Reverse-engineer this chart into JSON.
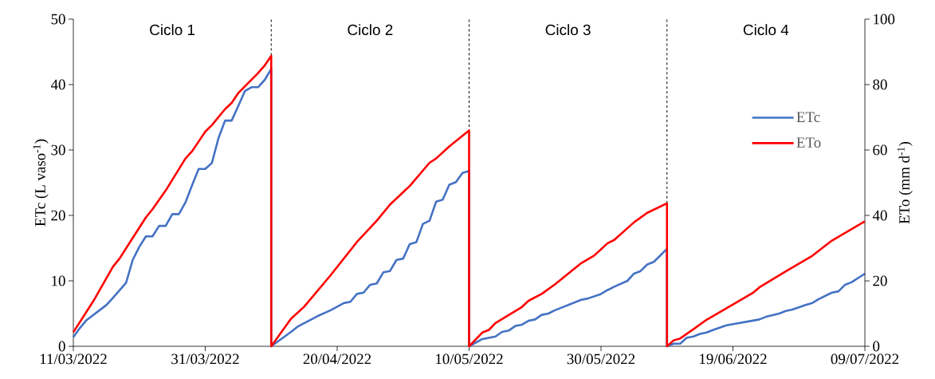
{
  "chart_data": {
    "type": "line",
    "xlim": [
      "2022-03-11",
      "2022-07-09"
    ],
    "xticks": [
      {
        "value": "2022-03-11",
        "label": "11/03/2022"
      },
      {
        "value": "2022-03-31",
        "label": "31/03/2022"
      },
      {
        "value": "2022-04-20",
        "label": "20/04/2022"
      },
      {
        "value": "2022-05-10",
        "label": "10/05/2022"
      },
      {
        "value": "2022-05-30",
        "label": "30/05/2022"
      },
      {
        "value": "2022-06-19",
        "label": "19/06/2022"
      },
      {
        "value": "2022-07-09",
        "label": "09/07/2022"
      }
    ],
    "ylim": [
      0,
      50
    ],
    "yticks": [
      0,
      10,
      20,
      30,
      40,
      50
    ],
    "y2lim": [
      0,
      100
    ],
    "y2ticks": [
      0,
      20,
      40,
      60,
      80,
      100
    ],
    "ylabel": "ETc (L vaso$^{-1}$)",
    "y2label": "ETo (mm d$^{-1}$)",
    "legend": "right",
    "series": [
      {
        "name": "ETc",
        "color": "#4472c4",
        "axis": "y",
        "x": [
          "2022-03-11",
          "2022-03-12",
          "2022-03-13",
          "2022-03-16",
          "2022-03-17",
          "2022-03-19",
          "2022-03-20",
          "2022-03-21",
          "2022-03-22",
          "2022-03-23",
          "2022-03-24",
          "2022-03-25",
          "2022-03-26",
          "2022-03-27",
          "2022-03-28",
          "2022-03-29",
          "2022-03-30",
          "2022-03-31",
          "2022-04-01",
          "2022-04-02",
          "2022-04-03",
          "2022-04-04",
          "2022-04-05",
          "2022-04-06",
          "2022-04-07",
          "2022-04-08",
          "2022-04-09",
          "2022-04-10",
          "2022-04-10",
          "2022-04-13",
          "2022-04-14",
          "2022-04-17",
          "2022-04-19",
          "2022-04-21",
          "2022-04-22",
          "2022-04-23",
          "2022-04-24",
          "2022-04-25",
          "2022-04-26",
          "2022-04-27",
          "2022-04-28",
          "2022-04-29",
          "2022-04-30",
          "2022-05-01",
          "2022-05-02",
          "2022-05-03",
          "2022-05-04",
          "2022-05-05",
          "2022-05-06",
          "2022-05-07",
          "2022-05-08",
          "2022-05-09",
          "2022-05-10",
          "2022-05-10",
          "2022-05-12",
          "2022-05-14",
          "2022-05-15",
          "2022-05-16",
          "2022-05-17",
          "2022-05-18",
          "2022-05-19",
          "2022-05-20",
          "2022-05-21",
          "2022-05-22",
          "2022-05-23",
          "2022-05-27",
          "2022-05-28",
          "2022-05-30",
          "2022-05-31",
          "2022-06-01",
          "2022-06-03",
          "2022-06-04",
          "2022-06-05",
          "2022-06-06",
          "2022-06-07",
          "2022-06-09",
          "2022-06-09",
          "2022-06-10",
          "2022-06-11",
          "2022-06-12",
          "2022-06-13",
          "2022-06-14",
          "2022-06-15",
          "2022-06-16",
          "2022-06-18",
          "2022-06-23",
          "2022-06-24",
          "2022-06-26",
          "2022-06-27",
          "2022-06-28",
          "2022-06-30",
          "2022-07-01",
          "2022-07-02",
          "2022-07-04",
          "2022-07-05",
          "2022-07-06",
          "2022-07-07",
          "2022-07-09"
        ],
        "values": [
          1.4,
          2.8,
          4.0,
          6.3,
          7.4,
          9.7,
          13.2,
          15.2,
          16.8,
          16.8,
          18.4,
          18.4,
          20.2,
          20.2,
          22.0,
          24.6,
          27.1,
          27.1,
          28.0,
          31.8,
          34.5,
          34.5,
          36.7,
          39.0,
          39.6,
          39.6,
          40.7,
          42.4,
          0,
          2.2,
          3.0,
          4.6,
          5.5,
          6.6,
          6.8,
          8.0,
          8.2,
          9.4,
          9.6,
          11.3,
          11.5,
          13.2,
          13.4,
          15.6,
          15.9,
          18.7,
          19.2,
          22.1,
          22.4,
          24.7,
          25.1,
          26.5,
          26.8,
          0,
          1.1,
          1.5,
          2.2,
          2.4,
          3.1,
          3.3,
          3.9,
          4.1,
          4.8,
          5.0,
          5.5,
          7.1,
          7.3,
          8.0,
          8.6,
          9.1,
          10.0,
          11.1,
          11.5,
          12.5,
          12.9,
          14.9,
          0,
          0.4,
          0.4,
          1.3,
          1.5,
          1.9,
          2.1,
          2.5,
          3.2,
          4.1,
          4.5,
          5.0,
          5.4,
          5.6,
          6.3,
          6.6,
          7.2,
          8.2,
          8.4,
          9.4,
          9.8,
          11.1
        ]
      },
      {
        "name": "ETo",
        "color": "#ff0000",
        "axis": "y2",
        "x": [
          "2022-03-11",
          "2022-03-14",
          "2022-03-17",
          "2022-03-18",
          "2022-03-20",
          "2022-03-22",
          "2022-03-23",
          "2022-03-25",
          "2022-03-28",
          "2022-03-29",
          "2022-03-31",
          "2022-04-01",
          "2022-04-03",
          "2022-04-04",
          "2022-04-05",
          "2022-04-08",
          "2022-04-09",
          "2022-04-10",
          "2022-04-10",
          "2022-04-13",
          "2022-04-15",
          "2022-04-19",
          "2022-04-21",
          "2022-04-23",
          "2022-04-26",
          "2022-04-28",
          "2022-05-01",
          "2022-05-04",
          "2022-05-05",
          "2022-05-07",
          "2022-05-10",
          "2022-05-10",
          "2022-05-12",
          "2022-05-13",
          "2022-05-14",
          "2022-05-18",
          "2022-05-19",
          "2022-05-21",
          "2022-05-23",
          "2022-05-27",
          "2022-05-29",
          "2022-05-31",
          "2022-06-01",
          "2022-06-04",
          "2022-06-06",
          "2022-06-09",
          "2022-06-09",
          "2022-06-10",
          "2022-06-11",
          "2022-06-13",
          "2022-06-15",
          "2022-06-19",
          "2022-06-22",
          "2022-06-23",
          "2022-06-27",
          "2022-07-01",
          "2022-07-04",
          "2022-07-09"
        ],
        "values": [
          4.3,
          13.7,
          24.3,
          26.8,
          33.1,
          39.4,
          41.9,
          47.6,
          57.4,
          59.6,
          65.6,
          67.6,
          72.5,
          74.4,
          77.4,
          83.5,
          85.8,
          88.8,
          0,
          8.4,
          12.1,
          21.7,
          26.8,
          31.9,
          38.4,
          43.3,
          49.0,
          56.1,
          57.4,
          61.1,
          66.0,
          0,
          4.2,
          5.0,
          7.1,
          12.0,
          13.9,
          16.0,
          18.9,
          25.4,
          27.8,
          31.5,
          32.5,
          37.9,
          40.8,
          43.7,
          0,
          1.8,
          2.4,
          5.2,
          8.1,
          12.8,
          16.3,
          18.0,
          22.9,
          27.6,
          32.3,
          38.2
        ]
      }
    ],
    "ref_lines": [
      {
        "axis": "x",
        "value": "2022-04-10",
        "color": "#000000",
        "line_style": "dashed"
      },
      {
        "axis": "x",
        "value": "2022-05-10",
        "color": "#000000",
        "line_style": "dashed"
      },
      {
        "axis": "x",
        "value": "2022-06-09",
        "color": "#000000",
        "line_style": "dashed"
      }
    ],
    "annotations": [
      "Ciclo 1",
      "Ciclo 2",
      "Ciclo 3",
      "Ciclo 4"
    ]
  }
}
